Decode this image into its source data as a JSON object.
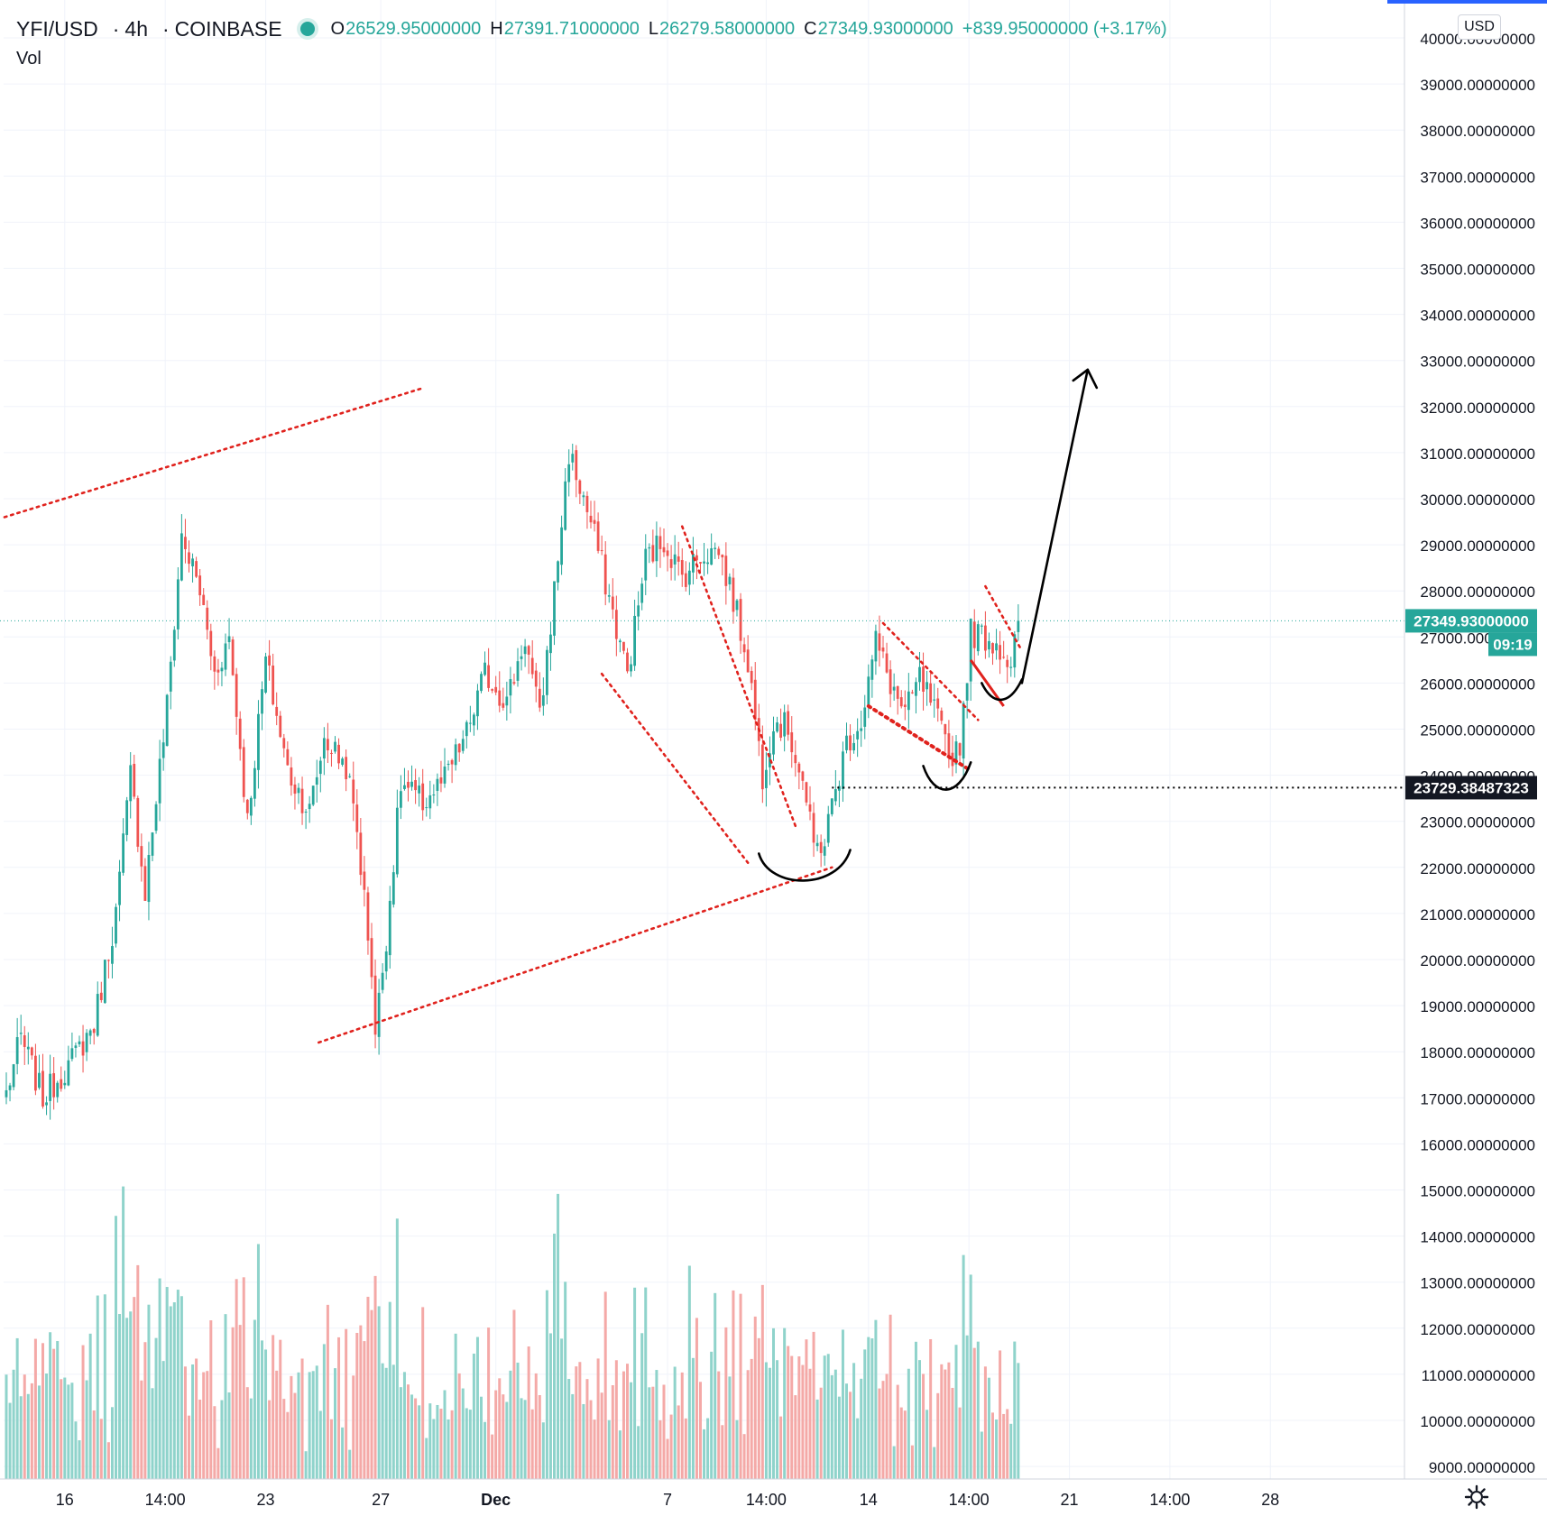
{
  "header": {
    "symbol": "YFI/USD",
    "interval": "4h",
    "exchange": "COINBASE",
    "o_label": "O",
    "o": "26529.95000000",
    "h_label": "H",
    "h": "27391.71000000",
    "l_label": "L",
    "l": "26279.58000000",
    "c_label": "C",
    "c": "27349.93000000",
    "change": "+839.95000000 (+3.17%)",
    "vol_label": "Vol",
    "currency": "USD"
  },
  "colors": {
    "up": "#26a69a",
    "down": "#ef5350",
    "vol_up": "#8fd3cb",
    "vol_down": "#f4a9a7",
    "drawing_red": "#e0221d",
    "drawing_black": "#000000",
    "grid": "#f0f3fa",
    "text": "#131722",
    "blue_accent": "#2962ff"
  },
  "chart_data": {
    "type": "candlestick",
    "ylim": [
      8800,
      40000
    ],
    "y_ticks": [
      "40000.00000000",
      "39000.00000000",
      "38000.00000000",
      "37000.00000000",
      "36000.00000000",
      "35000.00000000",
      "34000.00000000",
      "33000.00000000",
      "32000.00000000",
      "31000.00000000",
      "30000.00000000",
      "29000.00000000",
      "28000.00000000",
      "27000.00000000",
      "26000.00000000",
      "25000.00000000",
      "24000.00000000",
      "23000.00000000",
      "22000.00000000",
      "21000.00000000",
      "20000.00000000",
      "19000.00000000",
      "18000.00000000",
      "17000.00000000",
      "16000.00000000",
      "15000.00000000",
      "14000.00000000",
      "13000.00000000",
      "12000.00000000",
      "11000.00000000",
      "10000.00000000",
      "9000.00000000"
    ],
    "x_ticks": [
      "16",
      "14:00",
      "23",
      "27",
      "Dec",
      "7",
      "14:00",
      "14",
      "14:00",
      "21",
      "14:00",
      "28"
    ],
    "last_price": "27349.93000000",
    "countdown": "09:19",
    "level_label": "23729.38487323",
    "level_value": 23729.38487323,
    "anchors": [
      {
        "t": 0,
        "p": 17100
      },
      {
        "t": 4,
        "p": 18300
      },
      {
        "t": 10,
        "p": 17000
      },
      {
        "t": 18,
        "p": 17800
      },
      {
        "t": 24,
        "p": 18600
      },
      {
        "t": 30,
        "p": 21000
      },
      {
        "t": 34,
        "p": 24000
      },
      {
        "t": 38,
        "p": 21500
      },
      {
        "t": 44,
        "p": 25500
      },
      {
        "t": 48,
        "p": 29200
      },
      {
        "t": 53,
        "p": 28000
      },
      {
        "t": 57,
        "p": 26200
      },
      {
        "t": 61,
        "p": 27000
      },
      {
        "t": 66,
        "p": 23000
      },
      {
        "t": 71,
        "p": 26500
      },
      {
        "t": 77,
        "p": 24100
      },
      {
        "t": 83,
        "p": 23200
      },
      {
        "t": 87,
        "p": 24800
      },
      {
        "t": 93,
        "p": 24200
      },
      {
        "t": 96,
        "p": 22800
      },
      {
        "t": 100,
        "p": 19800
      },
      {
        "t": 101,
        "p": 18400
      },
      {
        "t": 104,
        "p": 20500
      },
      {
        "t": 108,
        "p": 23800
      },
      {
        "t": 114,
        "p": 23400
      },
      {
        "t": 120,
        "p": 23900
      },
      {
        "t": 126,
        "p": 24900
      },
      {
        "t": 131,
        "p": 26200
      },
      {
        "t": 137,
        "p": 25600
      },
      {
        "t": 142,
        "p": 27000
      },
      {
        "t": 146,
        "p": 25200
      },
      {
        "t": 150,
        "p": 28000
      },
      {
        "t": 154,
        "p": 31000
      },
      {
        "t": 158,
        "p": 30000
      },
      {
        "t": 162,
        "p": 28900
      },
      {
        "t": 166,
        "p": 27500
      },
      {
        "t": 170,
        "p": 26200
      },
      {
        "t": 175,
        "p": 28700
      },
      {
        "t": 180,
        "p": 29100
      },
      {
        "t": 185,
        "p": 28300
      },
      {
        "t": 190,
        "p": 28800
      },
      {
        "t": 195,
        "p": 28900
      },
      {
        "t": 199,
        "p": 27800
      },
      {
        "t": 203,
        "p": 26500
      },
      {
        "t": 207,
        "p": 24000
      },
      {
        "t": 210,
        "p": 25200
      },
      {
        "t": 214,
        "p": 25000
      },
      {
        "t": 218,
        "p": 23900
      },
      {
        "t": 221,
        "p": 22400
      },
      {
        "t": 224,
        "p": 22600
      },
      {
        "t": 227,
        "p": 23700
      },
      {
        "t": 230,
        "p": 24700
      },
      {
        "t": 234,
        "p": 25200
      },
      {
        "t": 238,
        "p": 26900
      },
      {
        "t": 242,
        "p": 26000
      },
      {
        "t": 246,
        "p": 25300
      },
      {
        "t": 250,
        "p": 26100
      },
      {
        "t": 254,
        "p": 25400
      },
      {
        "t": 258,
        "p": 24400
      },
      {
        "t": 261,
        "p": 24700
      },
      {
        "t": 264,
        "p": 27100
      },
      {
        "t": 268,
        "p": 27000
      },
      {
        "t": 272,
        "p": 26800
      },
      {
        "t": 275,
        "p": 26400
      },
      {
        "t": 277,
        "p": 27350
      }
    ],
    "candle_count": 278,
    "seed": 7
  },
  "annotations": {
    "trend_upper": [
      [
        -0.5,
        29600
      ],
      [
        114,
        32400
      ]
    ],
    "trend_lower": [
      [
        85.5,
        18200
      ],
      [
        226,
        22000
      ]
    ],
    "wedge_upper": [
      [
        185,
        29400
      ],
      [
        216,
        22900
      ]
    ],
    "wedge_lower": [
      [
        163,
        26200
      ],
      [
        203,
        22100
      ]
    ],
    "flag_upper": [
      [
        240,
        27300
      ],
      [
        266,
        25200
      ]
    ],
    "flag_lower": [
      [
        236,
        25500
      ],
      [
        264,
        24100
      ]
    ],
    "pennant_upper": [
      [
        268,
        28100
      ],
      [
        278,
        26700
      ]
    ],
    "red_solid": [
      [
        264,
        26500
      ],
      [
        273,
        25500
      ]
    ],
    "arrow_line": [
      [
        278,
        26000
      ],
      [
        296,
        32800
      ]
    ]
  }
}
